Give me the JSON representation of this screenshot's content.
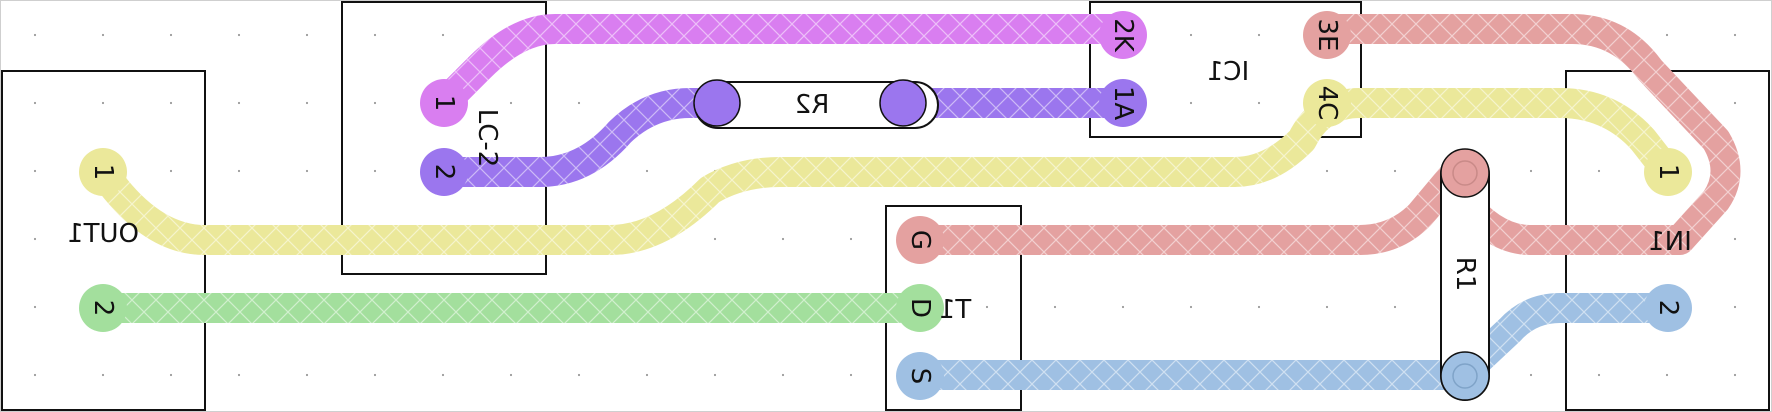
{
  "board": {
    "background": "#ffffff",
    "grid_dot_color": "#9a9a9a",
    "outline_color": "#111111",
    "trace_hatch_color": "#ffffff"
  },
  "nets": [
    {
      "id": "net-magenta",
      "color": "#d97ef0"
    },
    {
      "id": "net-violet",
      "color": "#9b76ee"
    },
    {
      "id": "net-yellow",
      "color": "#ebe89a"
    },
    {
      "id": "net-salmon",
      "color": "#e4a1a0"
    },
    {
      "id": "net-green",
      "color": "#a3df9d"
    },
    {
      "id": "net-blue",
      "color": "#9fc0e3"
    }
  ],
  "components": {
    "out1": {
      "label": "OUT1",
      "pins": [
        "1",
        "2"
      ]
    },
    "lc2": {
      "label": "LC-2",
      "pins": [
        "1",
        "2"
      ]
    },
    "r2": {
      "label": "R2"
    },
    "ic1": {
      "label": "IC1",
      "pins": [
        "2K",
        "1A",
        "3E",
        "4C"
      ]
    },
    "t1": {
      "label": "T1",
      "pins": [
        "G",
        "D",
        "S"
      ]
    },
    "r1": {
      "label": "R1"
    },
    "in1": {
      "label": "IN1",
      "pins": [
        "1",
        "2"
      ]
    }
  }
}
